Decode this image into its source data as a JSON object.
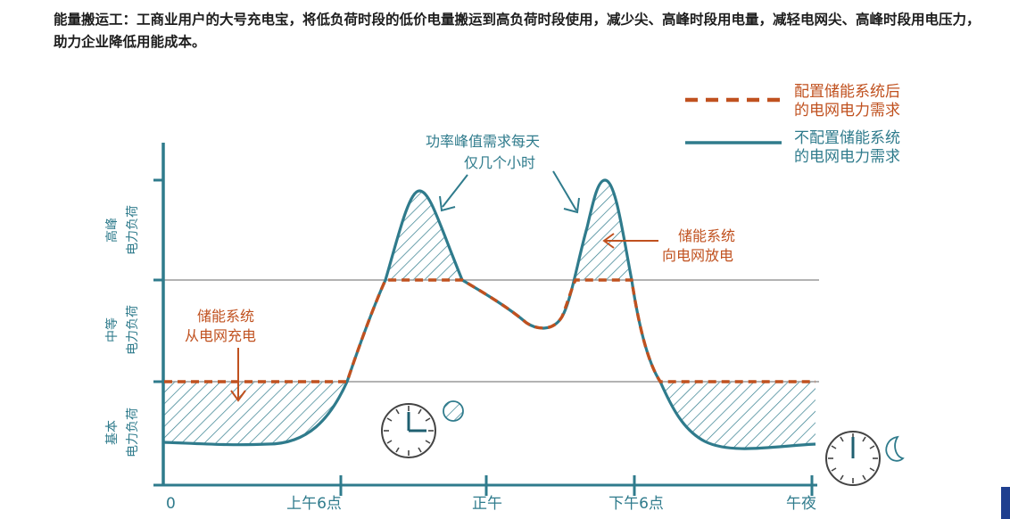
{
  "caption": "能量搬运工：工商业用户的大号充电宝，将低负荷时段的低价电量搬运到高负荷时段使用，减少尖、高峰时段用电量，减轻电网尖、高峰时段用电压力，助力企业降低用能成本。",
  "legend": {
    "dashed_line1": "配置储能系统后",
    "dashed_line2": "的电网电力需求",
    "solid_line1": "不配置储能系统",
    "solid_line2": "的电网电力需求"
  },
  "y_axis": {
    "peak_line1": "高峰",
    "peak_line2": "电力负荷",
    "mid_line1": "中等",
    "mid_line2": "电力负荷",
    "base_line1": "基本",
    "base_line2": "电力负荷"
  },
  "x_axis": {
    "t0": "0",
    "t6am": "上午6点",
    "noon": "正午",
    "t6pm": "下午6点",
    "midnight": "午夜"
  },
  "annotations": {
    "peak_note_line1": "功率峰值需求每天",
    "peak_note_line2": "仅几个小时",
    "discharge_line1": "储能系统",
    "discharge_line2": "向电网放电",
    "charge_line1": "储能系统",
    "charge_line2": "从电网充电"
  },
  "colors": {
    "dashed": "#c0511f",
    "solid": "#2f7b8c",
    "axis": "#2f7b8c",
    "annotation_blue": "#2f7b8c",
    "annotation_orange": "#c0511f",
    "label": "#2f7b8c",
    "gridline": "#9a9a9a"
  },
  "icons": {
    "morning_clock": "clock-icon",
    "sun": "sun-icon",
    "night_clock": "clock-icon",
    "moon": "moon-icon"
  }
}
